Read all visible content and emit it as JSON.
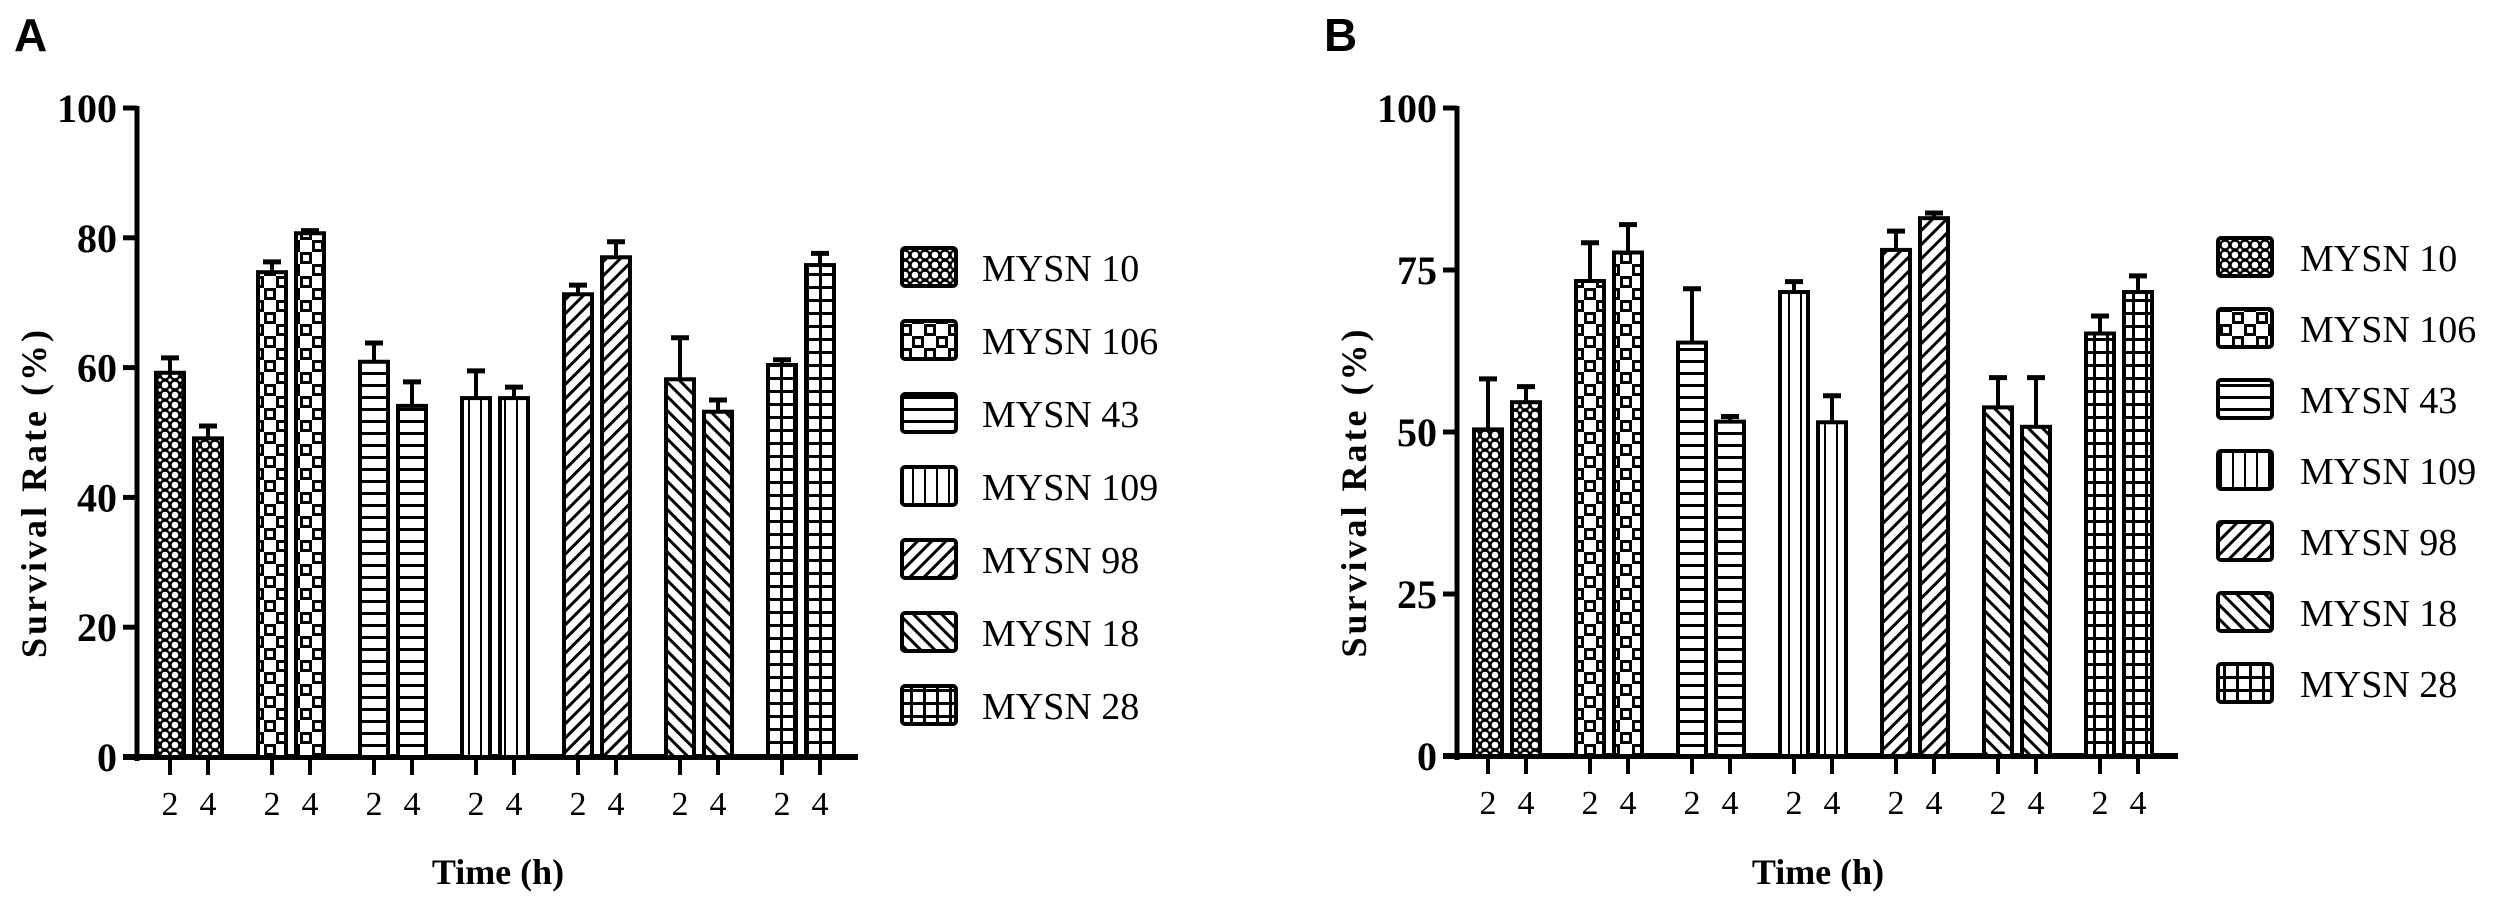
{
  "panels": [
    {
      "id": "A",
      "letter": "A"
    },
    {
      "id": "B",
      "letter": "B"
    }
  ],
  "chart_data": [
    {
      "type": "bar",
      "panel": "A",
      "title": "",
      "xlabel": "Time (h)",
      "ylabel": "Survival Rate (%)",
      "ylim": [
        0,
        100
      ],
      "yticks": [
        0,
        20,
        40,
        60,
        80,
        100
      ],
      "grid": false,
      "legend_position": "right",
      "categories": [
        "2",
        "4"
      ],
      "series": [
        {
          "name": "MYSN 10",
          "pattern": "small-dots",
          "values": [
            59.2,
            49.1
          ],
          "errors": [
            2.3,
            1.9
          ]
        },
        {
          "name": "MYSN 106",
          "pattern": "checker",
          "values": [
            74.7,
            80.7
          ],
          "errors": [
            1.6,
            0.4
          ]
        },
        {
          "name": "MYSN 43",
          "pattern": "horizontal",
          "values": [
            60.9,
            54.1
          ],
          "errors": [
            2.9,
            3.7
          ]
        },
        {
          "name": "MYSN 109",
          "pattern": "vertical",
          "values": [
            55.3,
            55.3
          ],
          "errors": [
            4.2,
            1.7
          ]
        },
        {
          "name": "MYSN 98",
          "pattern": "diag-up",
          "values": [
            71.3,
            77.0
          ],
          "errors": [
            1.4,
            2.4
          ]
        },
        {
          "name": "MYSN 18",
          "pattern": "diag-down",
          "values": [
            58.2,
            53.2
          ],
          "errors": [
            6.4,
            1.8
          ]
        },
        {
          "name": "MYSN 28",
          "pattern": "grid",
          "values": [
            60.4,
            75.8
          ],
          "errors": [
            0.8,
            1.8
          ]
        }
      ]
    },
    {
      "type": "bar",
      "panel": "B",
      "title": "",
      "xlabel": "Time (h)",
      "ylabel": "Survival Rate (%)",
      "ylim": [
        0,
        100
      ],
      "yticks": [
        0,
        25,
        50,
        75,
        100
      ],
      "grid": false,
      "legend_position": "right",
      "categories": [
        "2",
        "4"
      ],
      "series": [
        {
          "name": "MYSN 10",
          "pattern": "small-dots",
          "values": [
            50.4,
            54.6
          ],
          "errors": [
            7.8,
            2.4
          ]
        },
        {
          "name": "MYSN 106",
          "pattern": "checker",
          "values": [
            73.3,
            77.7
          ],
          "errors": [
            5.9,
            4.3
          ]
        },
        {
          "name": "MYSN 43",
          "pattern": "horizontal",
          "values": [
            63.8,
            51.6
          ],
          "errors": [
            8.3,
            0.8
          ]
        },
        {
          "name": "MYSN 109",
          "pattern": "vertical",
          "values": [
            71.6,
            51.5
          ],
          "errors": [
            1.6,
            4.1
          ]
        },
        {
          "name": "MYSN 98",
          "pattern": "diag-up",
          "values": [
            78.1,
            83.0
          ],
          "errors": [
            2.9,
            0.8
          ]
        },
        {
          "name": "MYSN 18",
          "pattern": "diag-down",
          "values": [
            53.8,
            50.8
          ],
          "errors": [
            4.6,
            7.6
          ]
        },
        {
          "name": "MYSN 28",
          "pattern": "grid",
          "values": [
            65.2,
            71.6
          ],
          "errors": [
            2.7,
            2.5
          ]
        }
      ]
    }
  ]
}
